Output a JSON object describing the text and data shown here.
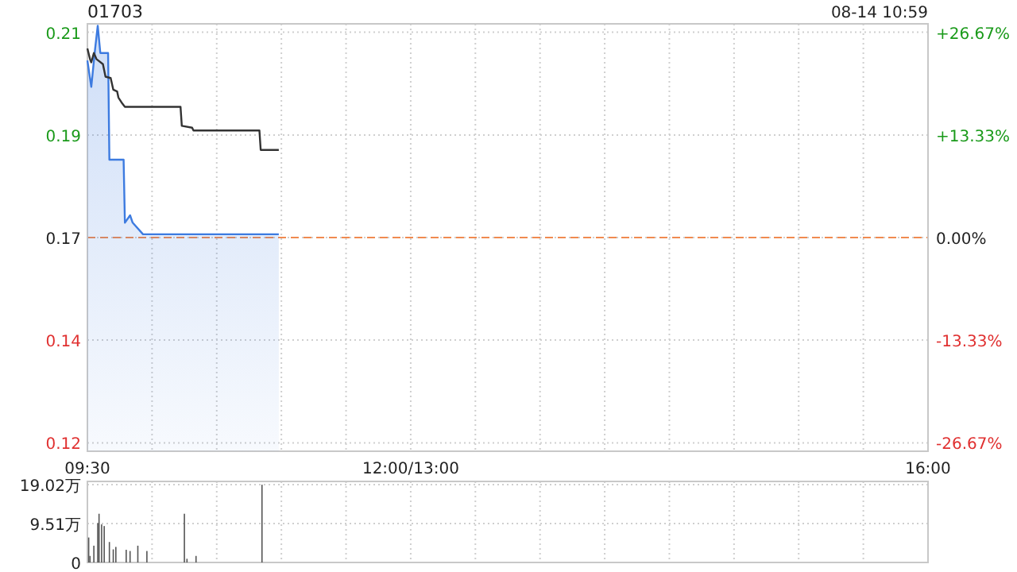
{
  "chart_data": [
    {
      "type": "line",
      "title": "01703",
      "annotations": [
        "08-14 10:59"
      ],
      "xlim": [
        9.5,
        16
      ],
      "xticks": [
        {
          "value": 9.5,
          "label": "09:30"
        },
        {
          "value": 10,
          "label": null
        },
        {
          "value": 10.5,
          "label": null
        },
        {
          "value": 11,
          "label": null
        },
        {
          "value": 11.5,
          "label": null
        },
        {
          "value": 12,
          "label": "12:00/13:00"
        },
        {
          "value": 12.5,
          "label": null
        },
        {
          "value": 13,
          "label": null
        },
        {
          "value": 13.5,
          "label": null
        },
        {
          "value": 14,
          "label": null
        },
        {
          "value": 14.5,
          "label": null
        },
        {
          "value": 15,
          "label": null
        },
        {
          "value": 15.5,
          "label": null
        },
        {
          "value": 16,
          "label": "16:00"
        }
      ],
      "ylim": [
        0.1199,
        0.2121
      ],
      "yticks": [
        {
          "value": 0.2103,
          "label": "0.21"
        },
        {
          "value": 0.1881,
          "label": "0.19"
        },
        {
          "value": 0.166,
          "label": "0.17"
        },
        {
          "value": 0.1439,
          "label": "0.14"
        },
        {
          "value": 0.1217,
          "label": "0.12"
        }
      ],
      "y2lim": [
        -27.8,
        27.8
      ],
      "y2ticks": [
        {
          "value": 26.67,
          "label": "+26.67%"
        },
        {
          "value": 13.33,
          "label": "+13.33%"
        },
        {
          "value": 0,
          "label": "0.00%"
        },
        {
          "value": -13.33,
          "label": "-13.33%"
        },
        {
          "value": -26.67,
          "label": "-26.67%"
        }
      ],
      "grid": true,
      "ref_lines": [
        {
          "axis": "y2",
          "value": 0,
          "label": null,
          "color": "#f08a50",
          "line_style": "dashed"
        }
      ],
      "series": [
        {
          "type": "area",
          "color": "#3d7be0",
          "x": [
            9.5,
            9.53,
            9.56,
            9.58,
            9.6,
            9.66,
            9.67,
            9.78,
            9.79,
            9.83,
            9.85,
            9.93,
            10.98
          ],
          "values": [
            0.2042,
            0.1985,
            0.2068,
            0.2117,
            0.2058,
            0.2058,
            0.1828,
            0.1828,
            0.1692,
            0.1708,
            0.1692,
            0.1667,
            0.1667
          ]
        },
        {
          "color": "#333333",
          "x": [
            9.5,
            9.52,
            9.53,
            9.55,
            9.57,
            9.62,
            9.64,
            9.68,
            9.7,
            9.73,
            9.74,
            9.77,
            9.79,
            9.95,
            10.22,
            10.23,
            10.31,
            10.32,
            10.83,
            10.84,
            10.98
          ],
          "values": [
            0.2068,
            0.2045,
            0.2038,
            0.2058,
            0.2045,
            0.2034,
            0.2007,
            0.2004,
            0.1979,
            0.1975,
            0.1962,
            0.1949,
            0.1942,
            0.1942,
            0.1942,
            0.1901,
            0.1897,
            0.1891,
            0.1891,
            0.1849,
            0.1849
          ]
        }
      ]
    },
    {
      "type": "bar",
      "tick_labels": "y",
      "xlim": [
        9.5,
        16
      ],
      "xticks": [
        {
          "value": 9.5,
          "label": null
        },
        {
          "value": 10,
          "label": null
        },
        {
          "value": 10.5,
          "label": null
        },
        {
          "value": 11,
          "label": null
        },
        {
          "value": 11.5,
          "label": null
        },
        {
          "value": 12,
          "label": null
        },
        {
          "value": 12.5,
          "label": null
        },
        {
          "value": 13,
          "label": null
        },
        {
          "value": 13.5,
          "label": null
        },
        {
          "value": 14,
          "label": null
        },
        {
          "value": 14.5,
          "label": null
        },
        {
          "value": 15,
          "label": null
        },
        {
          "value": 15.5,
          "label": null
        },
        {
          "value": 16,
          "label": null
        }
      ],
      "ylim": [
        0,
        19.8
      ],
      "yticks": [
        {
          "value": 0,
          "label": "0"
        },
        {
          "value": 9.51,
          "label": "9.51万"
        },
        {
          "value": 19.02,
          "label": "19.02万"
        }
      ],
      "grid": true,
      "series": [
        {
          "color": "#555555",
          "x": [
            9.51,
            9.52,
            9.55,
            9.58,
            9.59,
            9.61,
            9.63,
            9.67,
            9.7,
            9.72,
            9.8,
            9.83,
            9.89,
            9.96,
            10.25,
            10.27,
            10.34,
            10.85
          ],
          "values": [
            6.1,
            1.6,
            4.1,
            9.6,
            11.9,
            9.3,
            8.9,
            5.0,
            3.2,
            3.8,
            3.1,
            2.8,
            4.1,
            2.8,
            11.9,
            0.9,
            1.6,
            19.0
          ]
        }
      ]
    }
  ]
}
